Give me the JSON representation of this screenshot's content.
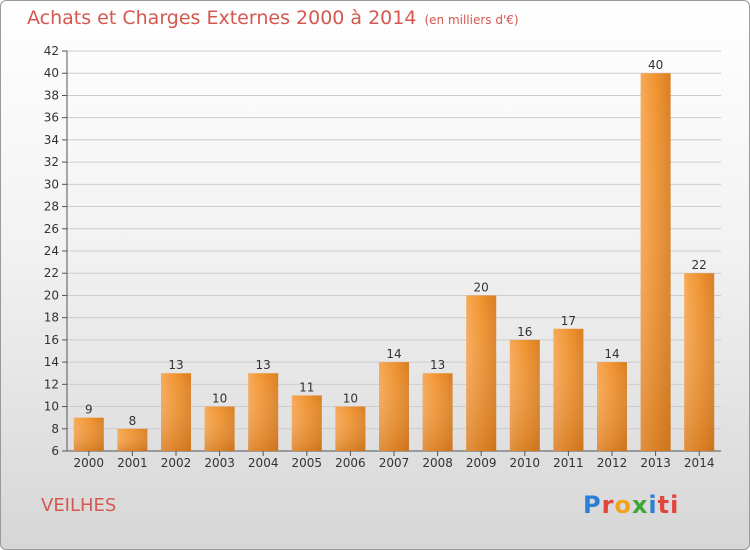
{
  "title": "Achats et Charges Externes 2000 à 2014",
  "subtitle": "(en milliers d'€)",
  "location": "VEILHES",
  "brand": "Proxiti",
  "brand_letters": [
    "P",
    "r",
    "o",
    "x",
    "i",
    "ti"
  ],
  "colors": {
    "bar": "#f0932f",
    "title": "#d4584f",
    "grid": "#cccccc"
  },
  "chart_data": {
    "type": "bar",
    "title": "Achats et Charges Externes 2000 à 2014",
    "subtitle": "(en milliers d'€)",
    "categories": [
      "2000",
      "2001",
      "2002",
      "2003",
      "2004",
      "2005",
      "2006",
      "2007",
      "2008",
      "2009",
      "2010",
      "2011",
      "2012",
      "2013",
      "2014"
    ],
    "values": [
      9,
      8,
      13,
      10,
      13,
      11,
      10,
      14,
      13,
      20,
      16,
      17,
      14,
      40,
      22
    ],
    "ylim": [
      6,
      42
    ],
    "yticks": [
      6,
      8,
      10,
      12,
      14,
      16,
      18,
      20,
      22,
      24,
      26,
      28,
      30,
      32,
      34,
      36,
      38,
      40,
      42
    ],
    "grid": true
  }
}
